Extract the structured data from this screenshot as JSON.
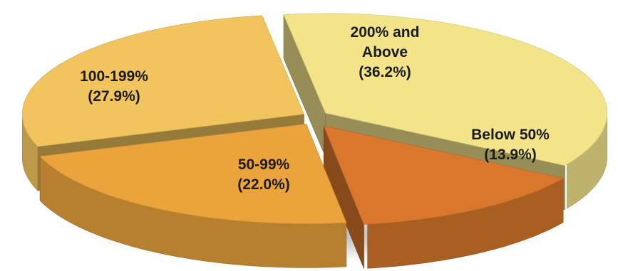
{
  "chart_data": {
    "type": "pie",
    "style": "3d-exploded",
    "title": "",
    "legend": "none",
    "slices": [
      {
        "label": "200% and Above",
        "label_lines": [
          "200% and",
          "Above"
        ],
        "percent_text": "(36.2%)",
        "value": 36.2,
        "color": "#f3e48a"
      },
      {
        "label": "Below 50%",
        "label_lines": [
          "Below 50%"
        ],
        "percent_text": "(13.9%)",
        "value": 13.9,
        "color": "#d9782c"
      },
      {
        "label": "50-99%",
        "label_lines": [
          "50-99%"
        ],
        "percent_text": "(22.0%)",
        "value": 22.0,
        "color": "#eba43c"
      },
      {
        "label": "100-199%",
        "label_lines": [
          "100-199%"
        ],
        "percent_text": "(27.9%)",
        "value": 27.9,
        "color": "#f2c45e"
      }
    ]
  }
}
